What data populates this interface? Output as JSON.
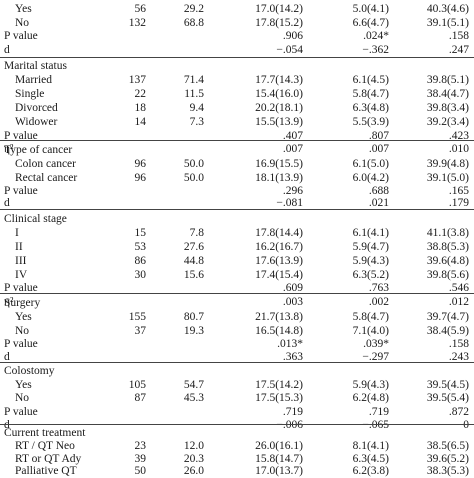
{
  "rows": [
    {
      "label": "Yes",
      "indent": true,
      "c": [
        "56",
        "29.2",
        "17.0(14.2)",
        "5.0(4.1)",
        "40.3(4.6)"
      ]
    },
    {
      "label": "No",
      "indent": true,
      "c": [
        "132",
        "68.8",
        "17.8(15.2)",
        "6.6(4.7)",
        "39.1(5.1)"
      ]
    },
    {
      "label": "P value",
      "indent": false,
      "c": [
        "",
        "",
        ".906",
        ".024*",
        ".158"
      ]
    },
    {
      "label": "d",
      "indent": false,
      "c": [
        "",
        "",
        "−.054",
        "−.362",
        ".247"
      ]
    },
    {
      "label": "Marital status",
      "indent": false,
      "c": [
        "",
        "",
        "",
        "",
        ""
      ]
    },
    {
      "label": "Married",
      "indent": true,
      "c": [
        "137",
        "71.4",
        "17.7(14.3)",
        "6.1(4.5)",
        "39.8(5.1)"
      ]
    },
    {
      "label": "Single",
      "indent": true,
      "c": [
        "22",
        "11.5",
        "15.4(16.0)",
        "5.8(4.7)",
        "38.4(4.7)"
      ]
    },
    {
      "label": "Divorced",
      "indent": true,
      "c": [
        "18",
        "9.4",
        "20.2(18.1)",
        "6.3(4.8)",
        "39.8(3.4)"
      ]
    },
    {
      "label": "Widower",
      "indent": true,
      "c": [
        "14",
        "7.3",
        "15.5(13.9)",
        "5.5(3.9)",
        "39.2(3.4)"
      ]
    },
    {
      "label": "P value",
      "indent": false,
      "c": [
        "",
        "",
        ".407",
        ".807",
        ".423"
      ]
    },
    {
      "label": "η²",
      "indent": false,
      "c": [
        "",
        "",
        ".007",
        ".007",
        ".010"
      ]
    },
    {
      "label": "Type of cancer",
      "indent": false,
      "c": [
        "",
        "",
        "",
        "",
        ""
      ]
    },
    {
      "label": "Colon cancer",
      "indent": true,
      "c": [
        "96",
        "50.0",
        "16.9(15.5)",
        "6.1(5.0)",
        "39.9(4.8)"
      ]
    },
    {
      "label": "Rectal cancer",
      "indent": true,
      "c": [
        "96",
        "50.0",
        "18.1(13.9)",
        "6.0(4.2)",
        "39.1(5.0)"
      ]
    },
    {
      "label": "P value",
      "indent": false,
      "c": [
        "",
        "",
        ".296",
        ".688",
        ".165"
      ]
    },
    {
      "label": "d",
      "indent": false,
      "c": [
        "",
        "",
        "−.081",
        ".021",
        ".179"
      ]
    },
    {
      "label": "Clinical stage",
      "indent": false,
      "c": [
        "",
        "",
        "",
        "",
        ""
      ]
    },
    {
      "label": "I",
      "indent": true,
      "c": [
        "15",
        "7.8",
        "17.8(14.4)",
        "6.1(4.1)",
        "41.1(3.8)"
      ]
    },
    {
      "label": "II",
      "indent": true,
      "c": [
        "53",
        "27.6",
        "16.2(16.7)",
        "5.9(4.7)",
        "38.8(5.3)"
      ]
    },
    {
      "label": "III",
      "indent": true,
      "c": [
        "86",
        "44.8",
        "17.6(13.9)",
        "5.9(4.3)",
        "39.6(4.8)"
      ]
    },
    {
      "label": "IV",
      "indent": true,
      "c": [
        "30",
        "15.6",
        "17.4(15.4)",
        "6.3(5.2)",
        "39.8(5.6)"
      ]
    },
    {
      "label": "P value",
      "indent": false,
      "c": [
        "",
        "",
        ".609",
        ".763",
        ".546"
      ]
    },
    {
      "label": "η²",
      "indent": false,
      "c": [
        "",
        "",
        ".003",
        ".002",
        ".012"
      ]
    },
    {
      "label": "Surgery",
      "indent": false,
      "c": [
        "",
        "",
        "",
        "",
        ""
      ]
    },
    {
      "label": "Yes",
      "indent": true,
      "c": [
        "155",
        "80.7",
        "21.7(13.8)",
        "5.8(4.7)",
        "39.7(4.7)"
      ]
    },
    {
      "label": "No",
      "indent": true,
      "c": [
        "37",
        "19.3",
        "16.5(14.8)",
        "7.1(4.0)",
        "38.4(5.9)"
      ]
    },
    {
      "label": "P value",
      "indent": false,
      "c": [
        "",
        "",
        ".013*",
        ".039*",
        ".158"
      ]
    },
    {
      "label": "d",
      "indent": false,
      "c": [
        "",
        "",
        ".363",
        "−.297",
        ".243"
      ]
    },
    {
      "label": "Colostomy",
      "indent": false,
      "c": [
        "",
        "",
        "",
        "",
        ""
      ]
    },
    {
      "label": "Yes",
      "indent": true,
      "c": [
        "105",
        "54.7",
        "17.5(14.2)",
        "5.9(4.3)",
        "39.5(4.5)"
      ]
    },
    {
      "label": "No",
      "indent": true,
      "c": [
        "87",
        "45.3",
        "17.5(15.3)",
        "6.2(4.8)",
        "39.5(5.4)"
      ]
    },
    {
      "label": "P value",
      "indent": false,
      "c": [
        "",
        "",
        ".719",
        ".719",
        ".872"
      ]
    },
    {
      "label": "d",
      "indent": false,
      "c": [
        "",
        "",
        "−.006",
        "−.065",
        "0"
      ]
    },
    {
      "label": "Current treatment",
      "indent": false,
      "c": [
        "",
        "",
        "",
        "",
        ""
      ]
    },
    {
      "label": "RT / QT Neo",
      "indent": true,
      "c": [
        "23",
        "12.0",
        "26.0(16.1)",
        "8.1(4.1)",
        "38.5(6.5)"
      ]
    },
    {
      "label": "RT or QT Ady",
      "indent": true,
      "c": [
        "39",
        "20.3",
        "15.8(14.7)",
        "6.3(4.5)",
        "39.6(5.2)"
      ]
    },
    {
      "label": "Palliative QT",
      "indent": true,
      "c": [
        "50",
        "26.0",
        "17.0(13.7)",
        "6.2(3.8)",
        "38.3(5.3)"
      ]
    }
  ]
}
